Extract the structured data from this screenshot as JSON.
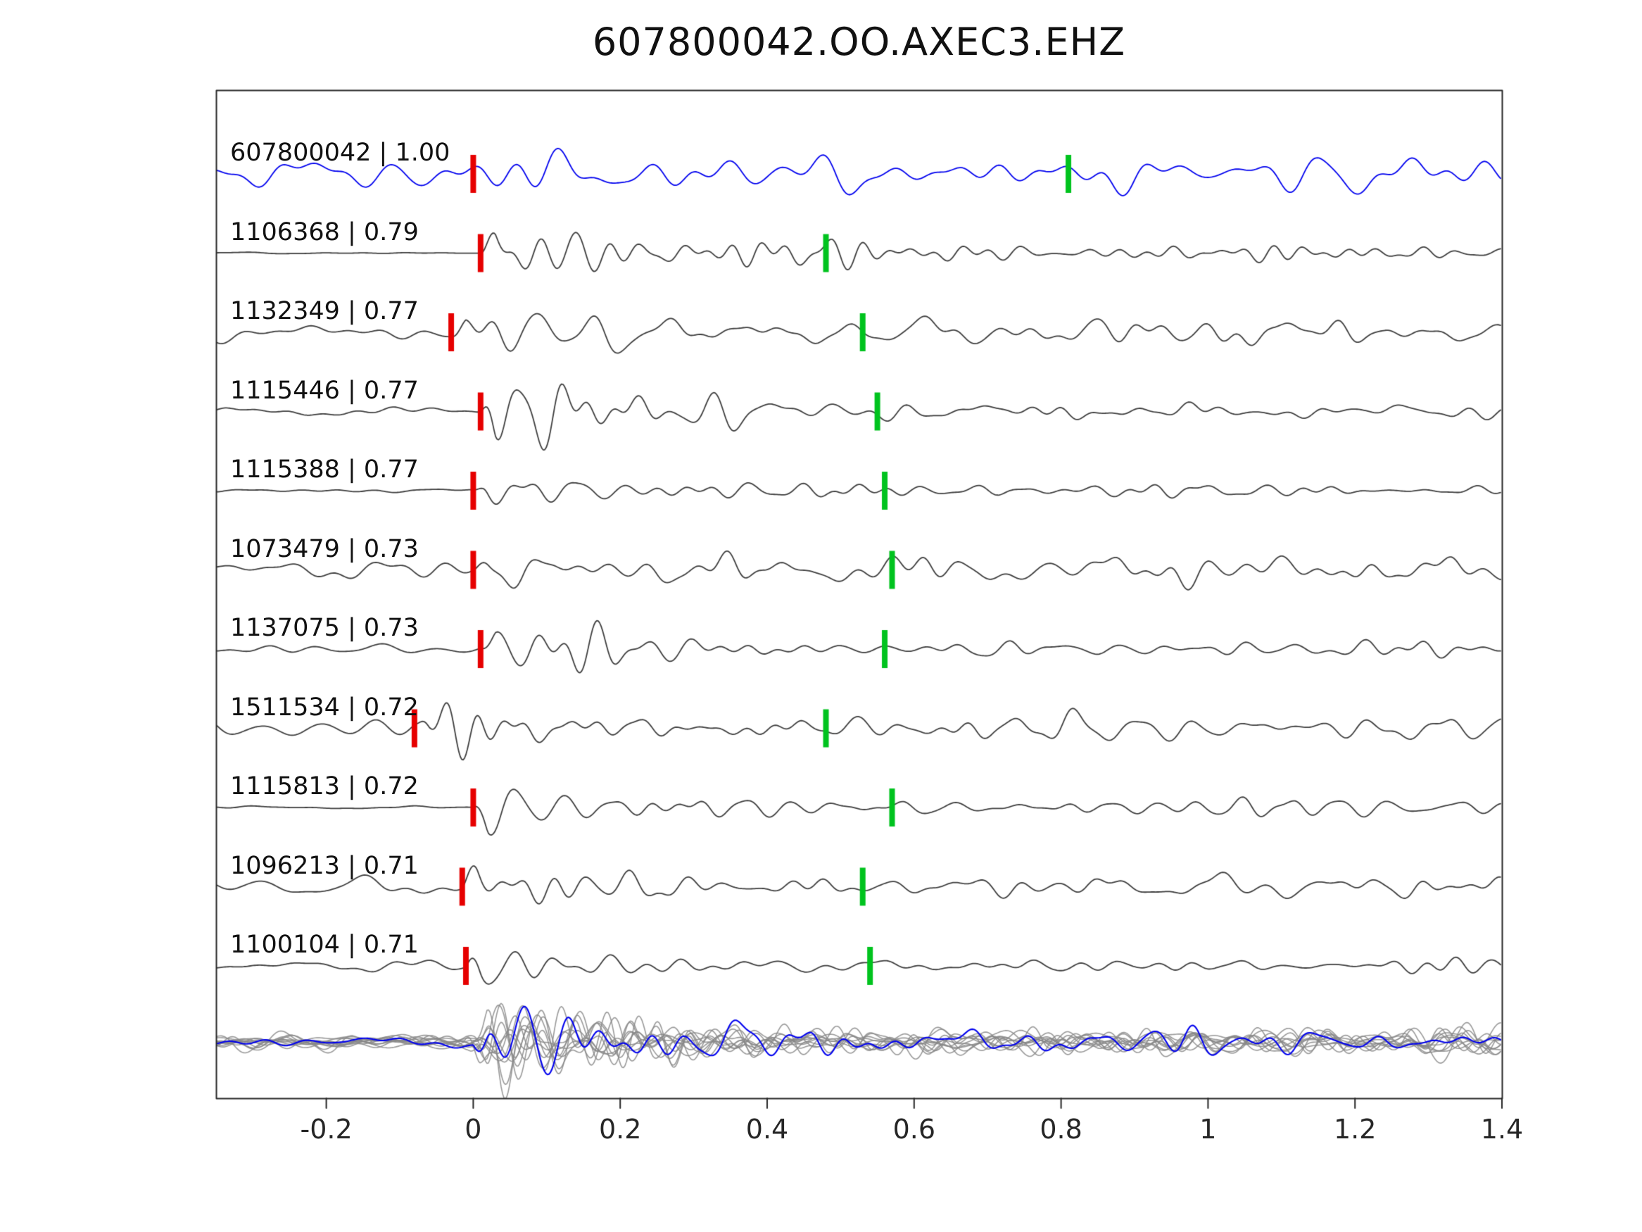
{
  "chart_data": {
    "type": "line",
    "title": "607800042.OO.AXEC3.EHZ",
    "xlabel": "",
    "ylabel": "",
    "xlim": [
      -0.35,
      1.4
    ],
    "x_ticks": [
      "-0.2",
      "0",
      "0.2",
      "0.4",
      "0.6",
      "0.8",
      "1",
      "1.2",
      "1.4"
    ],
    "grid": false,
    "legend": null,
    "description": "Template-matching seismogram alignment plot. Top trace (blue) is the template waveform; below are 10 detected event waveforms (dark gray), each labeled 'event id | correlation'. Red bars mark alignment pick times near 0 s on each trace; green bars mark a secondary pick time on each trace. The bottom row overlays all aligned detection waveforms (gray) with the template waveform (blue).",
    "series": [
      {
        "id": "607800042",
        "correlation": "1.00",
        "label": "607800042 | 1.00",
        "color": "#0000ee",
        "red_pick": 0.0,
        "green_pick": 0.81
      },
      {
        "id": "1106368",
        "correlation": "0.79",
        "label": "1106368 | 0.79",
        "color": "#3d3d3d",
        "red_pick": 0.01,
        "green_pick": 0.48
      },
      {
        "id": "1132349",
        "correlation": "0.77",
        "label": "1132349 | 0.77",
        "color": "#3d3d3d",
        "red_pick": -0.03,
        "green_pick": 0.53
      },
      {
        "id": "1115446",
        "correlation": "0.77",
        "label": "1115446 | 0.77",
        "color": "#3d3d3d",
        "red_pick": 0.01,
        "green_pick": 0.55
      },
      {
        "id": "1115388",
        "correlation": "0.77",
        "label": "1115388 | 0.77",
        "color": "#3d3d3d",
        "red_pick": 0.0,
        "green_pick": 0.56
      },
      {
        "id": "1073479",
        "correlation": "0.73",
        "label": "1073479 | 0.73",
        "color": "#3d3d3d",
        "red_pick": 0.0,
        "green_pick": 0.57
      },
      {
        "id": "1137075",
        "correlation": "0.73",
        "label": "1137075 | 0.73",
        "color": "#3d3d3d",
        "red_pick": 0.01,
        "green_pick": 0.56
      },
      {
        "id": "1511534",
        "correlation": "0.72",
        "label": "1511534 | 0.72",
        "color": "#3d3d3d",
        "red_pick": -0.08,
        "green_pick": 0.48
      },
      {
        "id": "1115813",
        "correlation": "0.72",
        "label": "1115813 | 0.72",
        "color": "#3d3d3d",
        "red_pick": 0.0,
        "green_pick": 0.57
      },
      {
        "id": "1096213",
        "correlation": "0.71",
        "label": "1096213 | 0.71",
        "color": "#3d3d3d",
        "red_pick": -0.015,
        "green_pick": 0.53
      },
      {
        "id": "1100104",
        "correlation": "0.71",
        "label": "1100104 | 0.71",
        "color": "#3d3d3d",
        "red_pick": -0.01,
        "green_pick": 0.54
      }
    ],
    "stack_row": {
      "overlaid_count": 11,
      "gray_color": "#9b9b9b",
      "template_color": "#0000ee"
    },
    "pick_colors": {
      "red": "#e60000",
      "green": "#00c31e"
    },
    "frame_color": "#262626"
  }
}
